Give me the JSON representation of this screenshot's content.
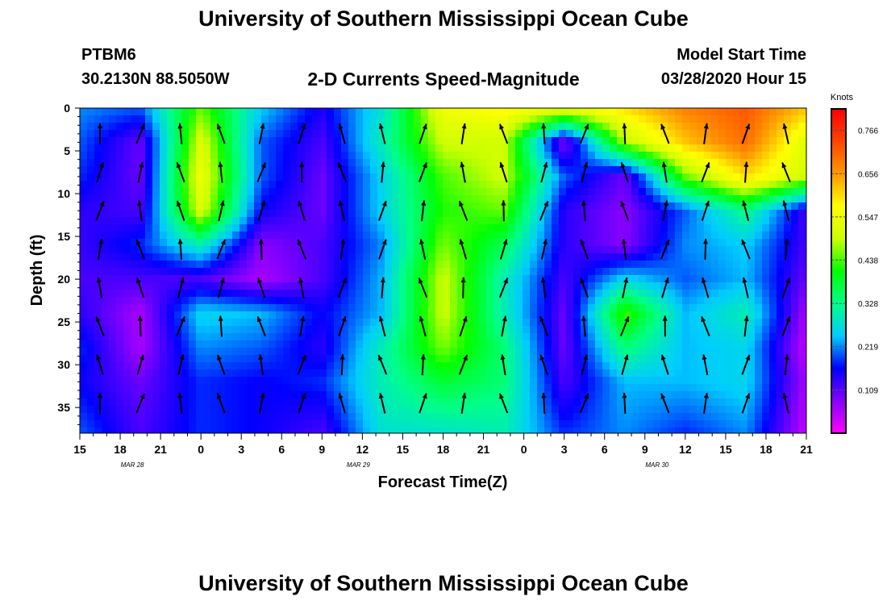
{
  "header": {
    "title": "University of Southern Mississippi Ocean Cube",
    "station": "PTBM6",
    "coords": "30.2130N 88.5050W",
    "subtitle": "2-D Currents Speed-Magnitude",
    "model_start_label": "Model Start Time",
    "model_start_value": "03/28/2020 Hour 15"
  },
  "footer": {
    "title": "University of Southern Mississippi Ocean Cube"
  },
  "chart_data": {
    "type": "heatmap",
    "xlabel": "Forecast Time(Z)",
    "ylabel": "Depth (ft)",
    "x_ticks": [
      "15",
      "18",
      "21",
      "0",
      "3",
      "6",
      "9",
      "12",
      "15",
      "18",
      "21",
      "0",
      "3",
      "6",
      "9",
      "12",
      "15",
      "18",
      "21"
    ],
    "date_labels": [
      {
        "label": "MAR  28",
        "tick_index": 1.3
      },
      {
        "label": "MAR  29",
        "tick_index": 6.9
      },
      {
        "label": "MAR  30",
        "tick_index": 14.3
      }
    ],
    "y_ticks": [
      0,
      5,
      10,
      15,
      20,
      25,
      30,
      35
    ],
    "ylim": [
      0,
      38
    ],
    "colorbar": {
      "title": "Knots",
      "ticks": [
        "0.766",
        "0.656",
        "0.547",
        "0.438",
        "0.328",
        "0.219",
        "0.109"
      ],
      "range": [
        0,
        0.82
      ],
      "colors": [
        "#ff00ff",
        "#8800ff",
        "#0000ff",
        "#00ccff",
        "#00ff88",
        "#00ff00",
        "#ccff00",
        "#ffff00",
        "#ff9900",
        "#ff4400",
        "#ff0000"
      ]
    },
    "time_hours": [
      0,
      4.5,
      9,
      13.5,
      18,
      22.5,
      27,
      31.5,
      36,
      40.5,
      45,
      49.5,
      54
    ],
    "depth_ft": [
      0,
      4,
      8,
      12,
      16,
      20,
      24,
      28,
      32,
      38
    ],
    "speed_knots": [
      [
        0.22,
        0.2,
        0.45,
        0.25,
        0.15,
        0.28,
        0.55,
        0.58,
        0.55,
        0.6,
        0.68,
        0.72,
        0.62
      ],
      [
        0.2,
        0.1,
        0.52,
        0.2,
        0.12,
        0.3,
        0.5,
        0.5,
        0.08,
        0.48,
        0.62,
        0.7,
        0.52
      ],
      [
        0.18,
        0.1,
        0.55,
        0.2,
        0.1,
        0.26,
        0.44,
        0.5,
        0.2,
        0.1,
        0.45,
        0.6,
        0.5
      ],
      [
        0.14,
        0.12,
        0.52,
        0.16,
        0.1,
        0.26,
        0.42,
        0.45,
        0.14,
        0.08,
        0.2,
        0.33,
        0.12
      ],
      [
        0.13,
        0.18,
        0.3,
        0.08,
        0.12,
        0.22,
        0.46,
        0.36,
        0.14,
        0.08,
        0.22,
        0.25,
        0.12
      ],
      [
        0.12,
        0.12,
        0.12,
        0.06,
        0.12,
        0.24,
        0.5,
        0.3,
        0.12,
        0.26,
        0.2,
        0.24,
        0.1
      ],
      [
        0.14,
        0.06,
        0.26,
        0.24,
        0.16,
        0.24,
        0.5,
        0.3,
        0.1,
        0.44,
        0.24,
        0.3,
        0.06
      ],
      [
        0.18,
        0.06,
        0.22,
        0.2,
        0.14,
        0.3,
        0.46,
        0.34,
        0.1,
        0.34,
        0.24,
        0.26,
        0.04
      ],
      [
        0.16,
        0.1,
        0.18,
        0.16,
        0.18,
        0.3,
        0.38,
        0.34,
        0.12,
        0.24,
        0.24,
        0.26,
        0.06
      ],
      [
        0.2,
        0.12,
        0.18,
        0.16,
        0.12,
        0.28,
        0.28,
        0.3,
        0.18,
        0.22,
        0.18,
        0.22,
        0.04
      ]
    ]
  }
}
